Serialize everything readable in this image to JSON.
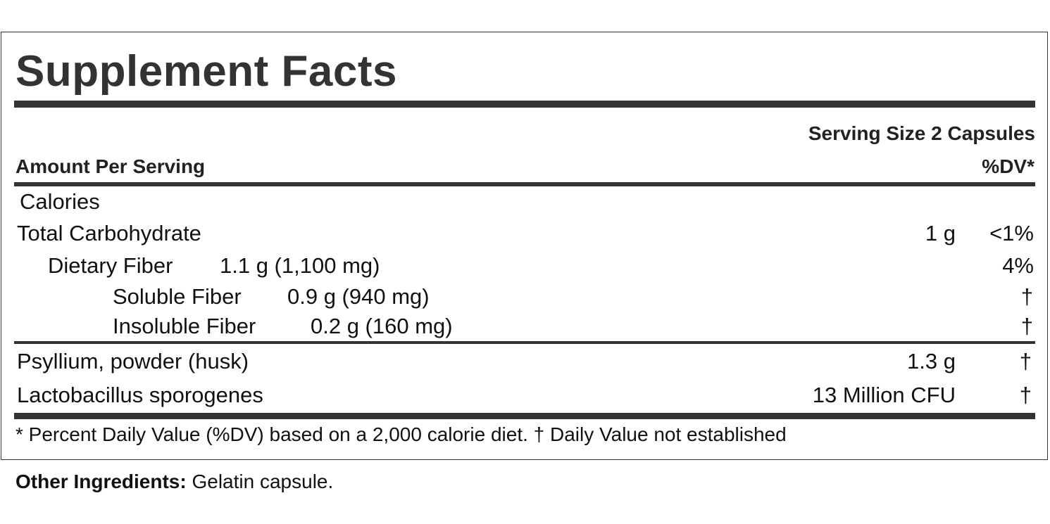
{
  "title": "Supplement Facts",
  "serving_size": "Serving Size 2 Capsules",
  "amount_per_serving": "Amount Per Serving",
  "dv_header": "%DV*",
  "rows": [
    {
      "name": "Calories",
      "amount": "",
      "dv": ""
    },
    {
      "name": "Total Carbohydrate",
      "amount": "1 g",
      "dv": "<1%"
    },
    {
      "name": "Dietary Fiber",
      "amount": "1.1 g (1,100 mg)",
      "dv": "4%"
    },
    {
      "name": "Soluble Fiber",
      "amount": "0.9 g (940 mg)",
      "dv": "†"
    },
    {
      "name": "Insoluble Fiber",
      "amount": "0.2 g (160 mg)",
      "dv": "†"
    },
    {
      "name": "Psyllium, powder (husk)",
      "amount": "1.3 g",
      "dv": "†"
    },
    {
      "name": "Lactobacillus sporogenes",
      "amount": "13 Million CFU",
      "dv": "†"
    }
  ],
  "footnote": "* Percent Daily Value (%DV) based on a 2,000 calorie diet. † Daily Value not established",
  "other_ingredients": {
    "label": "Other Ingredients:",
    "value": "Gelatin capsule."
  }
}
